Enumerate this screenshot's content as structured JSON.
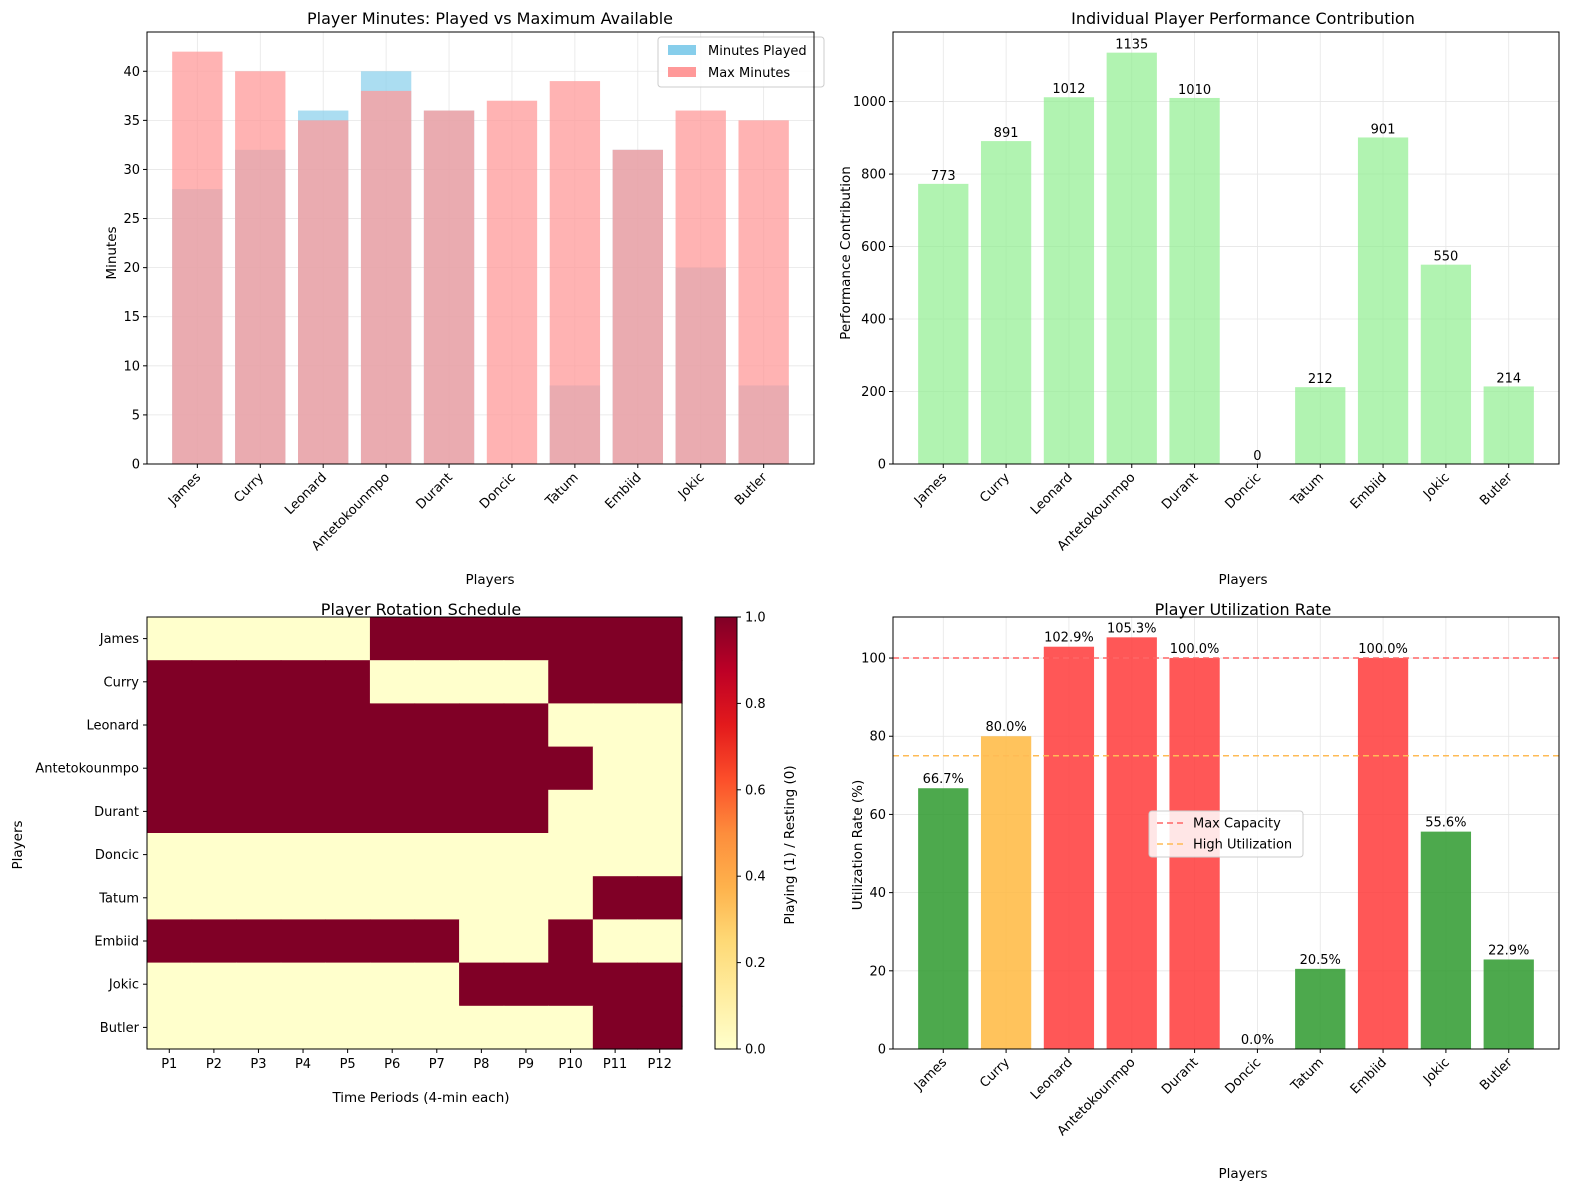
{
  "colors": {
    "played": "#87ceeb",
    "max": "#ff9999",
    "overlap": "#c299a6",
    "performance": "#90ee90",
    "util_green": "#2e9a2e",
    "util_orange": "#ffb940",
    "util_red": "#ff3a3a",
    "heat_on": "#800026",
    "heat_off": "#ffffcc"
  },
  "chart_data": [
    {
      "type": "bar",
      "title": "Player Minutes: Played vs Maximum Available",
      "xlabel": "Players",
      "ylabel": "Minutes",
      "categories": [
        "James",
        "Curry",
        "Leonard",
        "Antetokounmpo",
        "Durant",
        "Doncic",
        "Tatum",
        "Embiid",
        "Jokic",
        "Butler"
      ],
      "series": [
        {
          "name": "Minutes Played",
          "values": [
            28,
            32,
            36,
            40,
            36,
            0,
            8,
            32,
            20,
            8
          ]
        },
        {
          "name": "Max Minutes",
          "values": [
            42,
            40,
            35,
            38,
            36,
            37,
            39,
            32,
            36,
            35
          ]
        }
      ],
      "ylim": [
        0,
        44
      ],
      "yticks": [
        0,
        5,
        10,
        15,
        20,
        25,
        30,
        35,
        40
      ],
      "grid": true,
      "legend": "top-right"
    },
    {
      "type": "bar",
      "title": "Individual Player Performance Contribution",
      "xlabel": "Players",
      "ylabel": "Performance Contribution",
      "categories": [
        "James",
        "Curry",
        "Leonard",
        "Antetokounmpo",
        "Durant",
        "Doncic",
        "Tatum",
        "Embiid",
        "Jokic",
        "Butler"
      ],
      "values": [
        773,
        891,
        1012,
        1135,
        1010,
        0,
        212,
        901,
        550,
        214
      ],
      "data_labels": [
        "773",
        "891",
        "1012",
        "1135",
        "1010",
        "0",
        "212",
        "901",
        "550",
        "214"
      ],
      "ylim": [
        0,
        1192
      ],
      "yticks": [
        0,
        200,
        400,
        600,
        800,
        1000
      ],
      "grid": true
    },
    {
      "type": "heatmap",
      "title": "Player Rotation Schedule",
      "xlabel": "Time Periods (4-min each)",
      "ylabel": "Players",
      "x": [
        "P1",
        "P2",
        "P3",
        "P4",
        "P5",
        "P6",
        "P7",
        "P8",
        "P9",
        "P10",
        "P11",
        "P12"
      ],
      "y": [
        "James",
        "Curry",
        "Leonard",
        "Antetokounmpo",
        "Durant",
        "Doncic",
        "Tatum",
        "Embiid",
        "Jokic",
        "Butler"
      ],
      "z": [
        [
          0,
          0,
          0,
          0,
          0,
          1,
          1,
          1,
          1,
          1,
          1,
          1
        ],
        [
          1,
          1,
          1,
          1,
          1,
          0,
          0,
          0,
          0,
          1,
          1,
          1
        ],
        [
          1,
          1,
          1,
          1,
          1,
          1,
          1,
          1,
          1,
          0,
          0,
          0
        ],
        [
          1,
          1,
          1,
          1,
          1,
          1,
          1,
          1,
          1,
          1,
          0,
          0
        ],
        [
          1,
          1,
          1,
          1,
          1,
          1,
          1,
          1,
          1,
          0,
          0,
          0
        ],
        [
          0,
          0,
          0,
          0,
          0,
          0,
          0,
          0,
          0,
          0,
          0,
          0
        ],
        [
          0,
          0,
          0,
          0,
          0,
          0,
          0,
          0,
          0,
          0,
          1,
          1
        ],
        [
          1,
          1,
          1,
          1,
          1,
          1,
          1,
          0,
          0,
          1,
          0,
          0
        ],
        [
          0,
          0,
          0,
          0,
          0,
          0,
          0,
          1,
          1,
          1,
          1,
          1
        ],
        [
          0,
          0,
          0,
          0,
          0,
          0,
          0,
          0,
          0,
          0,
          1,
          1
        ]
      ],
      "colorbar": {
        "label": "Playing (1) / Resting (0)",
        "range": [
          0,
          1
        ],
        "ticks": [
          "0.0",
          "0.2",
          "0.4",
          "0.6",
          "0.8",
          "1.0"
        ]
      }
    },
    {
      "type": "bar",
      "title": "Player Utilization Rate",
      "xlabel": "Players",
      "ylabel": "Utilization Rate (%)",
      "categories": [
        "James",
        "Curry",
        "Leonard",
        "Antetokounmpo",
        "Durant",
        "Doncic",
        "Tatum",
        "Embiid",
        "Jokic",
        "Butler"
      ],
      "values": [
        66.7,
        80.0,
        102.9,
        105.3,
        100.0,
        0.0,
        20.5,
        100.0,
        55.6,
        22.9
      ],
      "data_labels": [
        "66.7%",
        "80.0%",
        "102.9%",
        "105.3%",
        "100.0%",
        "0.0%",
        "20.5%",
        "100.0%",
        "55.6%",
        "22.9%"
      ],
      "bar_colors": [
        "green",
        "orange",
        "red",
        "red",
        "red",
        "green",
        "green",
        "red",
        "green",
        "green"
      ],
      "reference_lines": [
        {
          "name": "Max Capacity",
          "value": 100,
          "color": "red"
        },
        {
          "name": "High Utilization",
          "value": 75,
          "color": "orange"
        }
      ],
      "ylim": [
        0,
        110.5
      ],
      "yticks": [
        0,
        20,
        40,
        60,
        80,
        100
      ],
      "grid": true,
      "legend": "center"
    }
  ]
}
